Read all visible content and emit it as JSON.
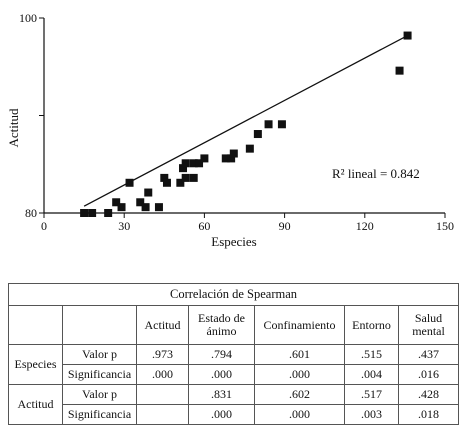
{
  "chart_data": {
    "type": "scatter",
    "xlabel": "Especies",
    "ylabel": "Actitud",
    "xlim": [
      0,
      150
    ],
    "ylim": [
      80,
      100
    ],
    "x_ticks": [
      "0",
      "30",
      "60",
      "90",
      "120",
      "150"
    ],
    "y_ticks": [
      "80",
      "100"
    ],
    "annotation": "R² lineal = 0.842",
    "trendline": {
      "x": [
        15,
        136
      ],
      "y": [
        80.7,
        98.2
      ]
    },
    "points": [
      {
        "x": 15,
        "y": 80
      },
      {
        "x": 18,
        "y": 80
      },
      {
        "x": 24,
        "y": 80
      },
      {
        "x": 27,
        "y": 81.1
      },
      {
        "x": 29,
        "y": 80.6
      },
      {
        "x": 32,
        "y": 83.1
      },
      {
        "x": 36,
        "y": 81.1
      },
      {
        "x": 38,
        "y": 80.6
      },
      {
        "x": 39,
        "y": 82.1
      },
      {
        "x": 43,
        "y": 80.6
      },
      {
        "x": 45,
        "y": 83.6
      },
      {
        "x": 46,
        "y": 83.1
      },
      {
        "x": 51,
        "y": 83.1
      },
      {
        "x": 52,
        "y": 84.6
      },
      {
        "x": 53,
        "y": 83.6
      },
      {
        "x": 53,
        "y": 85.1
      },
      {
        "x": 56,
        "y": 83.6
      },
      {
        "x": 56,
        "y": 85.1
      },
      {
        "x": 58,
        "y": 85.1
      },
      {
        "x": 60,
        "y": 85.6
      },
      {
        "x": 68,
        "y": 85.6
      },
      {
        "x": 70,
        "y": 85.6
      },
      {
        "x": 71,
        "y": 86.1
      },
      {
        "x": 77,
        "y": 86.6
      },
      {
        "x": 80,
        "y": 88.1
      },
      {
        "x": 84,
        "y": 89.1
      },
      {
        "x": 89,
        "y": 89.1
      },
      {
        "x": 133,
        "y": 94.6
      },
      {
        "x": 136,
        "y": 98.2
      }
    ]
  },
  "table": {
    "title": "Correlación de Spearman",
    "headers": [
      "Actitud",
      "Estado de ánimo",
      "Confinamiento",
      "Entorno",
      "Salud mental"
    ],
    "groups": [
      {
        "name": "Especies",
        "rows": [
          {
            "label": "Valor p",
            "values": [
              ".973",
              ".794",
              ".601",
              ".515",
              ".437"
            ]
          },
          {
            "label": "Significancia",
            "values": [
              ".000",
              ".000",
              ".000",
              ".004",
              ".016"
            ]
          }
        ]
      },
      {
        "name": "Actitud",
        "rows": [
          {
            "label": "Valor p",
            "values": [
              "",
              ".831",
              ".602",
              ".517",
              ".428"
            ]
          },
          {
            "label": "Significancia",
            "values": [
              "",
              ".000",
              ".000",
              ".003",
              ".018"
            ]
          }
        ]
      }
    ]
  }
}
